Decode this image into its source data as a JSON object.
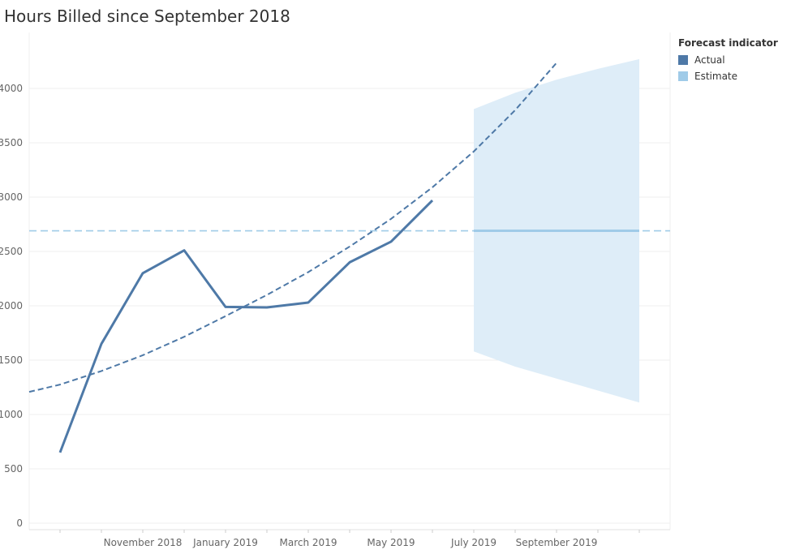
{
  "chart_data": {
    "type": "line",
    "title": "Hours Billed since September 2018",
    "xlabel": "",
    "ylabel": "",
    "ylim": [
      0,
      4450
    ],
    "yticks": [
      0,
      500,
      1000,
      1500,
      2000,
      2500,
      3000,
      3500,
      4000
    ],
    "xticks": [
      "November 2018",
      "January 2019",
      "March 2019",
      "May 2019",
      "July 2019",
      "September 2019"
    ],
    "grid": true,
    "legend": {
      "title": "Forecast indicator",
      "placement": "top-right",
      "items": [
        {
          "label": "Actual",
          "color": "#4e79a7"
        },
        {
          "label": "Estimate",
          "color": "#a0cbe8"
        }
      ]
    },
    "series": [
      {
        "name": "Actual",
        "x": [
          "2018-09",
          "2018-10",
          "2018-11",
          "2018-12",
          "2019-01",
          "2019-02",
          "2019-03",
          "2019-04",
          "2019-05",
          "2019-06"
        ],
        "values": [
          650,
          1650,
          2300,
          2510,
          1990,
          1985,
          2030,
          2400,
          2590,
          2970
        ]
      },
      {
        "name": "Estimate",
        "x": [
          "2019-07",
          "2019-08",
          "2019-09",
          "2019-10",
          "2019-11"
        ],
        "values": [
          2690,
          2690,
          2690,
          2690,
          2690
        ],
        "band_upper": [
          3810,
          3960,
          4080,
          4180,
          4270
        ],
        "band_lower": [
          1580,
          1440,
          1330,
          1220,
          1110
        ]
      }
    ],
    "reference_lines": {
      "average": 2690,
      "trend_x": [
        "2018-08",
        "2018-09",
        "2018-10",
        "2018-11",
        "2018-12",
        "2019-01",
        "2019-02",
        "2019-03",
        "2019-04",
        "2019-05",
        "2019-06",
        "2019-07",
        "2019-08",
        "2019-09"
      ],
      "trend_values": [
        1185,
        1275,
        1400,
        1545,
        1715,
        1905,
        2100,
        2310,
        2545,
        2800,
        3090,
        3420,
        3800,
        4235
      ]
    },
    "colors": {
      "actual": "#4e79a7",
      "estimate": "#a0cbe8",
      "band": "#deedf8",
      "grid": "#efefef"
    }
  }
}
